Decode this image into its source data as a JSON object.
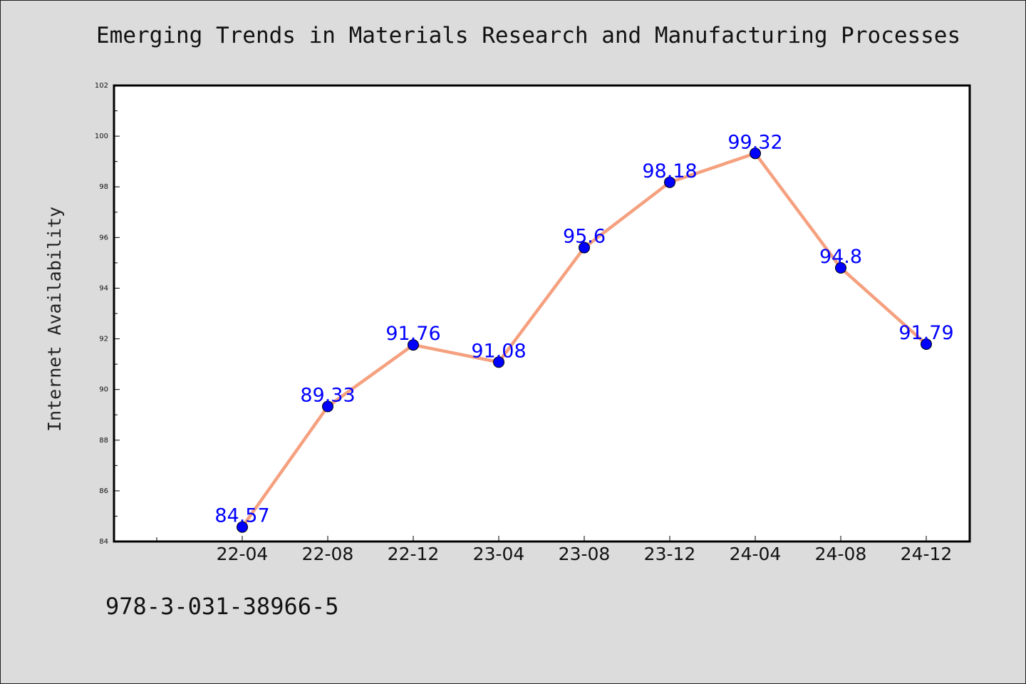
{
  "title": "Emerging Trends in Materials Research and Manufacturing Processes",
  "footer_text": "978-3-031-38966-5",
  "colors": {
    "background": "#dcdcdc",
    "plot_background": "#ffffff",
    "line": "#f5a07e",
    "marker": "#0000ff",
    "label": "#0000ff"
  },
  "chart_data": {
    "type": "line",
    "title": "Emerging Trends in Materials Research and Manufacturing Processes",
    "ylabel": "Internet Availability",
    "xlabel": "",
    "categories": [
      "22-04",
      "22-08",
      "22-12",
      "23-04",
      "23-08",
      "23-12",
      "24-04",
      "24-08",
      "24-12"
    ],
    "series": [
      {
        "values": [
          84.57,
          89.33,
          91.76,
          91.08,
          95.6,
          98.18,
          99.32,
          94.8,
          91.79
        ]
      }
    ],
    "data_labels": [
      "84.57",
      "89.33",
      "91.76",
      "91.08",
      "95.6",
      "98.18",
      "99.32",
      "94.8",
      "91.79"
    ],
    "ylim": [
      84,
      102
    ],
    "yticks": [
      84,
      86,
      88,
      90,
      92,
      94,
      96,
      98,
      100,
      102
    ],
    "grid": false,
    "legend": "none"
  }
}
